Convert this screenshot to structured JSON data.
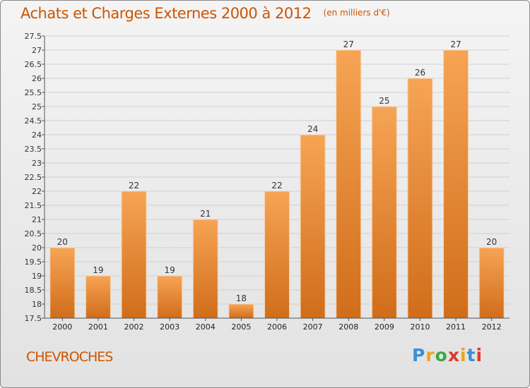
{
  "title": "Achats et Charges Externes 2000 à 2012",
  "unit": "(en milliers d'€)",
  "place": "CHEVROCHES",
  "logo": {
    "text": "Proxiti",
    "letters": [
      "P",
      "r",
      "o",
      "x",
      "i",
      "t",
      "i"
    ],
    "colors": [
      "#3a8fd6",
      "#f0a21c",
      "#3ba84a",
      "#d93a2b",
      "#f0a21c",
      "#3a8fd6",
      "#d93a2b"
    ]
  },
  "colors": {
    "bar_top": "#f6a455",
    "bar_bottom": "#d06d1a",
    "accent": "#cc5500",
    "grid": "#d0d0d0"
  },
  "chart_data": {
    "type": "bar",
    "title": "Achats et Charges Externes 2000 à 2012",
    "xlabel": "",
    "ylabel": "",
    "categories": [
      "2000",
      "2001",
      "2002",
      "2003",
      "2004",
      "2005",
      "2006",
      "2007",
      "2008",
      "2009",
      "2010",
      "2011",
      "2012"
    ],
    "values": [
      20,
      19,
      22,
      19,
      21,
      18,
      22,
      24,
      27,
      25,
      26,
      27,
      20
    ],
    "ylim": [
      17.5,
      27.5
    ],
    "yticks": [
      17.5,
      18,
      18.5,
      19,
      19.5,
      20,
      20.5,
      21,
      21.5,
      22,
      22.5,
      23,
      23.5,
      24,
      24.5,
      25,
      25.5,
      26,
      26.5,
      27,
      27.5
    ],
    "grid": true
  }
}
